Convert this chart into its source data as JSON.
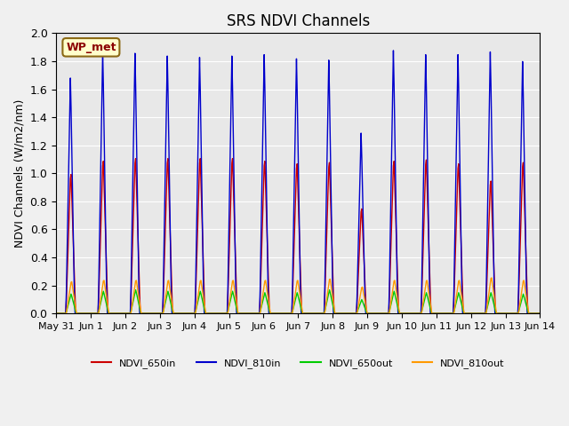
{
  "title": "SRS NDVI Channels",
  "ylabel": "NDVI Channels (W/m2/nm)",
  "ylim": [
    0.0,
    2.0
  ],
  "background_color": "#e8e8e8",
  "fig_background": "#f0f0f0",
  "legend_label": "WP_met",
  "series": {
    "NDVI_650in": {
      "color": "#cc0000"
    },
    "NDVI_810in": {
      "color": "#0000cc"
    },
    "NDVI_650out": {
      "color": "#00cc00"
    },
    "NDVI_810out": {
      "color": "#ff9900"
    }
  },
  "xtick_labels": [
    "May 31",
    "Jun 1",
    "Jun 2",
    "Jun 3",
    "Jun 4",
    "Jun 5",
    "Jun 6",
    "Jun 7",
    "Jun 8",
    "Jun 9",
    "Jun 10",
    "Jun 11",
    "Jun 12",
    "Jun 13",
    "Jun 14"
  ],
  "red_peaks": [
    1.05,
    1.15,
    1.17,
    1.17,
    1.17,
    1.17,
    1.15,
    1.13,
    1.14,
    0.79,
    1.15,
    1.16,
    1.13,
    1.0,
    1.14
  ],
  "blue_peaks": [
    1.71,
    1.9,
    1.89,
    1.87,
    1.86,
    1.87,
    1.88,
    1.85,
    1.84,
    1.31,
    1.91,
    1.88,
    1.88,
    1.9,
    1.83
  ],
  "green_peaks": [
    0.14,
    0.16,
    0.17,
    0.16,
    0.16,
    0.16,
    0.15,
    0.15,
    0.17,
    0.1,
    0.16,
    0.15,
    0.15,
    0.15,
    0.14
  ],
  "orange_peaks": [
    0.24,
    0.25,
    0.25,
    0.25,
    0.25,
    0.25,
    0.25,
    0.25,
    0.26,
    0.2,
    0.25,
    0.25,
    0.25,
    0.27,
    0.25
  ],
  "ytick_vals": [
    0.0,
    0.2,
    0.4,
    0.6,
    0.8,
    1.0,
    1.2,
    1.4,
    1.6,
    1.8,
    2.0
  ],
  "ppd": 48,
  "n_days": 15
}
